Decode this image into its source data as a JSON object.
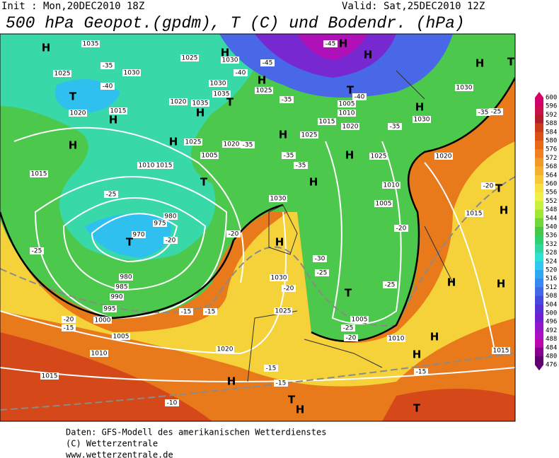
{
  "header": {
    "init": "Init : Mon,20DEC2010 18Z",
    "valid": "Valid: Sat,25DEC2010 12Z",
    "title": "500 hPa Geopot.(gpdm), T (C) und Bodendr. (hPa)"
  },
  "colorbar": {
    "levels": [
      600,
      596,
      592,
      588,
      584,
      580,
      576,
      572,
      568,
      564,
      560,
      556,
      552,
      548,
      544,
      540,
      536,
      532,
      528,
      524,
      520,
      516,
      512,
      508,
      504,
      500,
      496,
      492,
      488,
      484,
      480,
      476
    ],
    "colors": [
      "#d4006a",
      "#c8104a",
      "#b41c2c",
      "#c83c1c",
      "#dc5014",
      "#e86814",
      "#f08020",
      "#f09828",
      "#f4b030",
      "#f8c838",
      "#f8e040",
      "#f0f048",
      "#c8f040",
      "#a0e838",
      "#70d838",
      "#48c848",
      "#30d070",
      "#30d8a0",
      "#30e0d0",
      "#30c8f0",
      "#30a8f0",
      "#3888f0",
      "#4068e8",
      "#4848e0",
      "#5830d8",
      "#7020d0",
      "#9018c8",
      "#a810c0",
      "#b808b0",
      "#880090",
      "#600070"
    ]
  },
  "map": {
    "labels": [
      "H",
      "1035",
      "1025",
      "-35",
      "1030",
      "-40",
      "T",
      "1020",
      "1015",
      "H",
      "H",
      "1015",
      "1025",
      "H",
      "1030",
      "-45",
      "-40",
      "H",
      "1025",
      "1030",
      "1035",
      "1020",
      "1035",
      "T",
      "H",
      "-35",
      "-45",
      "H",
      "H",
      "T",
      "-40",
      "1005",
      "1010",
      "1015",
      "1020",
      "-35",
      "H",
      "1030",
      "H",
      "1030",
      "T",
      "-35",
      "-25",
      "H",
      "1025",
      "1025",
      "1020",
      "-35",
      "H",
      "1010",
      "1015",
      "1005",
      "T",
      "-35",
      "-35",
      "H",
      "1025",
      "1020",
      "H",
      "1010",
      "-25",
      "1030",
      "T",
      "-20",
      "1005",
      "H",
      "1015",
      "980",
      "975",
      "970",
      "T",
      "-20",
      "-20",
      "H",
      "-20",
      "-25",
      "-30",
      "-25",
      "1030",
      "-20",
      "980",
      "985",
      "990",
      "T",
      "-25",
      "H",
      "H",
      "995",
      "-15",
      "-15",
      "1025",
      "1000",
      "-20",
      "-15",
      "1005",
      "-25",
      "1005",
      "-20",
      "1010",
      "H",
      "1020",
      "1010",
      "H",
      "1015",
      "-15",
      "-15",
      "1015",
      "H",
      "-15",
      "T",
      "H",
      "-10",
      "T"
    ]
  },
  "footer": {
    "lines": [
      "Daten: GFS-Modell des amerikanischen Wetterdienstes",
      "(C) Wetterzentrale",
      "www.wetterzentrale.de"
    ]
  }
}
